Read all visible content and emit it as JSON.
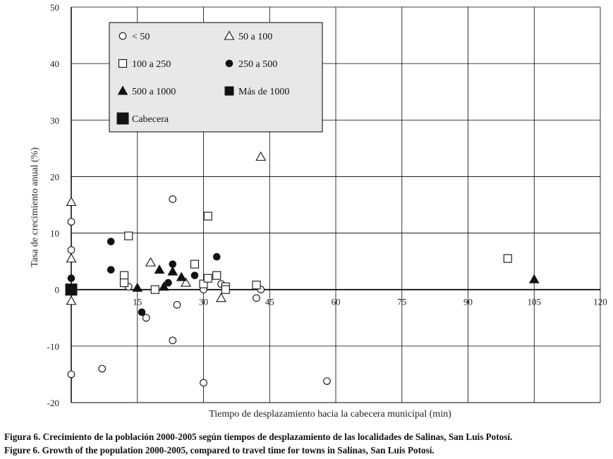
{
  "chart_data": {
    "type": "scatter",
    "title": "",
    "xlabel": "Tiempo de desplazamiento hacia la cabecera municipal (min)",
    "ylabel": "Tasa de crecimiento anual (%)",
    "xlim": [
      0,
      120
    ],
    "ylim": [
      -20,
      50
    ],
    "x_ticks": [
      15,
      30,
      45,
      60,
      75,
      90,
      105,
      120
    ],
    "x_tick_labels": [
      "15",
      "30",
      "45",
      "60",
      "75",
      "90",
      "105",
      "120"
    ],
    "y_ticks": [
      -20,
      -10,
      0,
      10,
      20,
      30,
      40,
      50
    ],
    "y_tick_labels": [
      "-20",
      "-10",
      "0",
      "10",
      "20",
      "30",
      "40",
      "50"
    ],
    "grid": true,
    "legend_position": "top-left",
    "series": [
      {
        "name": "< 50",
        "marker": "circle-open",
        "points": [
          [
            0,
            12
          ],
          [
            0,
            7
          ],
          [
            0,
            -15
          ],
          [
            7,
            -14
          ],
          [
            13,
            0.5
          ],
          [
            17,
            -5
          ],
          [
            23,
            16
          ],
          [
            23,
            -9
          ],
          [
            24,
            -2.7
          ],
          [
            30,
            0
          ],
          [
            30,
            -16.5
          ],
          [
            34,
            1
          ],
          [
            42,
            -1.5
          ],
          [
            43,
            0
          ],
          [
            58,
            -16.2
          ]
        ]
      },
      {
        "name": "50 a 100",
        "marker": "triangle-open",
        "points": [
          [
            0,
            15.5
          ],
          [
            0,
            5.5
          ],
          [
            0,
            -2
          ],
          [
            18,
            4.8
          ],
          [
            26,
            1.2
          ],
          [
            34,
            -1.5
          ],
          [
            43,
            23.5
          ]
        ]
      },
      {
        "name": "100 a 250",
        "marker": "square-open",
        "points": [
          [
            13,
            9.5
          ],
          [
            12,
            2.5
          ],
          [
            12,
            1.2
          ],
          [
            19,
            0
          ],
          [
            28,
            4.5
          ],
          [
            30,
            1
          ],
          [
            31,
            13
          ],
          [
            31,
            2
          ],
          [
            33,
            2.5
          ],
          [
            35,
            0.5
          ],
          [
            35,
            0
          ],
          [
            42,
            0.8
          ],
          [
            99,
            5.5
          ]
        ]
      },
      {
        "name": "250 a 500",
        "marker": "circle-filled",
        "points": [
          [
            0,
            2
          ],
          [
            9,
            8.5
          ],
          [
            9,
            3.5
          ],
          [
            16,
            -4
          ],
          [
            22,
            1.2
          ],
          [
            23,
            4.5
          ],
          [
            28,
            2.5
          ],
          [
            33,
            5.8
          ]
        ]
      },
      {
        "name": "500 a 1000",
        "marker": "triangle-filled",
        "points": [
          [
            15,
            0.3
          ],
          [
            20,
            3.5
          ],
          [
            21,
            0.5
          ],
          [
            23,
            3.2
          ],
          [
            25,
            2.2
          ],
          [
            105,
            1.8
          ]
        ]
      },
      {
        "name": "Más de 1000",
        "marker": "square-filled",
        "points": []
      },
      {
        "name": "Cabecera",
        "marker": "square-filled-large",
        "points": [
          [
            0,
            0
          ]
        ]
      }
    ],
    "colors": {
      "marker": "#111111",
      "grid": "#000000",
      "legend_bg": "#e8e8e8"
    }
  },
  "captions": {
    "spanish": "Figura 6. Crecimiento de la población 2000-2005 según tiempos de desplazamiento de las localidades de Salinas, San Luis Potosí.",
    "english": "Figure 6. Growth of the population 2000-2005, compared to travel time for towns in Salinas, San Luis Potosí."
  }
}
